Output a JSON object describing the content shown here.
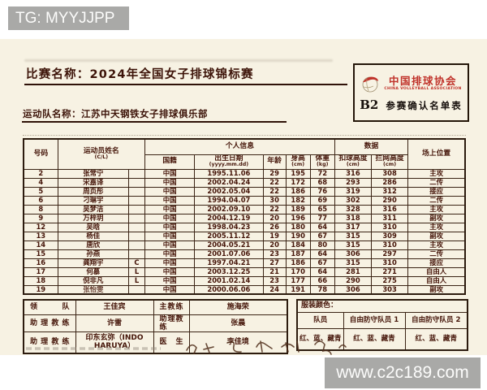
{
  "watermark_top": "TG: MYYJJPP",
  "watermark_bottom": "www.c2c189.com",
  "header": {
    "competition_line": "比赛名称：2024年全国女子排球锦标赛",
    "team_line": "运动队名称：江苏中天钢铁女子排球俱乐部"
  },
  "form_box": {
    "association_cn": "中国排球协会",
    "association_en": "CHINA VOLLEYBALL ASSOCIATION",
    "code": "B2",
    "title": "参赛确认名单表"
  },
  "roster": {
    "headers": {
      "number": "号码",
      "name": "运动员姓名",
      "name_sub": "(C/L)",
      "personal_group": "个人信息",
      "nationality": "国籍",
      "birth": "出生日期",
      "birth_sub": "(yyyy.mm.dd)",
      "age": "年龄",
      "height": "身高",
      "height_sub": "(cm)",
      "weight": "体重",
      "weight_sub": "(kg)",
      "data_group": "数据",
      "spike": "扣球高度",
      "spike_sub": "(cm)",
      "block": "拦网高度",
      "block_sub": "(cm)",
      "position": "场上位置"
    },
    "rows": [
      {
        "no": "2",
        "name": "张常宁",
        "cl": "",
        "nat": "中国",
        "dob": "1995.11.06",
        "age": "29",
        "height": "195",
        "weight": "72",
        "spike": "316",
        "block": "308",
        "pos": "主攻",
        "faded": false
      },
      {
        "no": "4",
        "name": "宋嘉译",
        "cl": "",
        "nat": "中国",
        "dob": "2002.04.24",
        "age": "22",
        "height": "172",
        "weight": "68",
        "spike": "293",
        "block": "286",
        "pos": "二传",
        "faded": false
      },
      {
        "no": "5",
        "name": "周页彤",
        "cl": "",
        "nat": "中国",
        "dob": "2002.05.04",
        "age": "22",
        "height": "186",
        "weight": "76",
        "spike": "319",
        "block": "312",
        "pos": "接应",
        "faded": false
      },
      {
        "no": "6",
        "name": "刁琳宇",
        "cl": "",
        "nat": "中国",
        "dob": "1994.04.07",
        "age": "30",
        "height": "182",
        "weight": "69",
        "spike": "302",
        "block": "290",
        "pos": "二传",
        "faded": false
      },
      {
        "no": "8",
        "name": "吴梦洁",
        "cl": "",
        "nat": "中国",
        "dob": "2002.09.10",
        "age": "22",
        "height": "189",
        "weight": "65",
        "spike": "328",
        "block": "316",
        "pos": "主攻",
        "faded": false
      },
      {
        "no": "9",
        "name": "万梓玥",
        "cl": "",
        "nat": "中国",
        "dob": "2004.12.19",
        "age": "20",
        "height": "196",
        "weight": "77",
        "spike": "318",
        "block": "311",
        "pos": "副攻",
        "faded": false
      },
      {
        "no": "12",
        "name": "吴晗",
        "cl": "",
        "nat": "中国",
        "dob": "1998.04.23",
        "age": "26",
        "height": "180",
        "weight": "64",
        "spike": "317",
        "block": "310",
        "pos": "主攻",
        "faded": false
      },
      {
        "no": "13",
        "name": "杨佳",
        "cl": "",
        "nat": "中国",
        "dob": "2005.11.12",
        "age": "19",
        "height": "190",
        "weight": "67",
        "spike": "315",
        "block": "309",
        "pos": "副攻",
        "faded": false
      },
      {
        "no": "14",
        "name": "唐欣",
        "cl": "",
        "nat": "中国",
        "dob": "2004.05.21",
        "age": "20",
        "height": "184",
        "weight": "80",
        "spike": "315",
        "block": "310",
        "pos": "主攻",
        "faded": false
      },
      {
        "no": "15",
        "name": "孙燕",
        "cl": "",
        "nat": "中国",
        "dob": "2001.07.06",
        "age": "23",
        "height": "187",
        "weight": "64",
        "spike": "306",
        "block": "297",
        "pos": "二传",
        "faded": false
      },
      {
        "no": "16",
        "name": "龚翔宇",
        "cl": "C",
        "nat": "中国",
        "dob": "1997.04.21",
        "age": "27",
        "height": "186",
        "weight": "67",
        "spike": "315",
        "block": "310",
        "pos": "接应",
        "faded": false
      },
      {
        "no": "17",
        "name": "何慕",
        "cl": "L",
        "nat": "中国",
        "dob": "2003.12.25",
        "age": "21",
        "height": "170",
        "weight": "64",
        "spike": "281",
        "block": "271",
        "pos": "自由人",
        "faded": false
      },
      {
        "no": "18",
        "name": "倪非凡",
        "cl": "L",
        "nat": "中国",
        "dob": "2001.02.14",
        "age": "23",
        "height": "177",
        "weight": "66",
        "spike": "290",
        "block": "275",
        "pos": "自由人",
        "faded": false
      },
      {
        "no": "19",
        "name": "张怡雯",
        "cl": "",
        "nat": "中国",
        "dob": "2000.06.06",
        "age": "24",
        "height": "191",
        "weight": "78",
        "spike": "306",
        "block": "303",
        "pos": "副攻",
        "faded": true
      }
    ]
  },
  "staff": {
    "rows": [
      {
        "label1": "领队",
        "name1": "王佳宾",
        "label2": "主教练",
        "name2": "施海荣"
      },
      {
        "label1": "助理教练",
        "name1": "许雷",
        "label2": "助理教练",
        "name2": "张晨"
      },
      {
        "label1": "助理教练",
        "name1": "印东玄弥（INDO HARUYA）",
        "label2": "医生",
        "name2": "李佳境"
      }
    ]
  },
  "uniform": {
    "title": "服装颜色：",
    "columns": [
      "队员",
      "自由防守队员 1",
      "自由防守队员 2"
    ],
    "values": [
      "红、蓝、藏青",
      "红、蓝、藏青",
      "红、蓝、藏青"
    ]
  },
  "colors": {
    "ink": "#451509",
    "accent_red": "#c0322a",
    "paper": "#f7f2e3",
    "border": "#3a2314",
    "watermark_bg": "#a9a9a7"
  }
}
